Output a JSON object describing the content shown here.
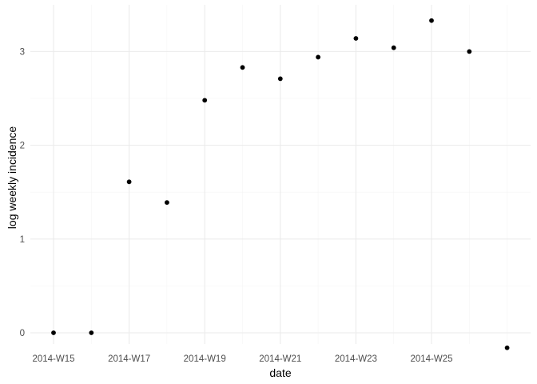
{
  "chart_data": {
    "type": "scatter",
    "title": "",
    "xlabel": "date",
    "ylabel": "log weekly incidence",
    "x_categories": [
      "2014-W15",
      "2014-W16",
      "2014-W17",
      "2014-W18",
      "2014-W19",
      "2014-W20",
      "2014-W21",
      "2014-W22",
      "2014-W23",
      "2014-W24",
      "2014-W25",
      "2014-W26",
      "2014-W27"
    ],
    "x_tick_labels": [
      "2014-W15",
      "2014-W17",
      "2014-W19",
      "2014-W21",
      "2014-W23",
      "2014-W25"
    ],
    "y_ticks": [
      0,
      1,
      2,
      3
    ],
    "ylim": [
      -0.16,
      3.5
    ],
    "grid": true,
    "points": [
      {
        "x": "2014-W15",
        "y": 0.0
      },
      {
        "x": "2014-W16",
        "y": 0.0
      },
      {
        "x": "2014-W17",
        "y": 1.61
      },
      {
        "x": "2014-W18",
        "y": 1.39
      },
      {
        "x": "2014-W19",
        "y": 2.48
      },
      {
        "x": "2014-W20",
        "y": 2.83
      },
      {
        "x": "2014-W21",
        "y": 2.71
      },
      {
        "x": "2014-W22",
        "y": 2.94
      },
      {
        "x": "2014-W23",
        "y": 3.14
      },
      {
        "x": "2014-W24",
        "y": 3.04
      },
      {
        "x": "2014-W25",
        "y": 3.33
      },
      {
        "x": "2014-W26",
        "y": 3.0
      },
      {
        "x": "2014-W27",
        "y": -0.16
      }
    ],
    "point_color": "#000000",
    "grid_color": "#ebebeb"
  }
}
